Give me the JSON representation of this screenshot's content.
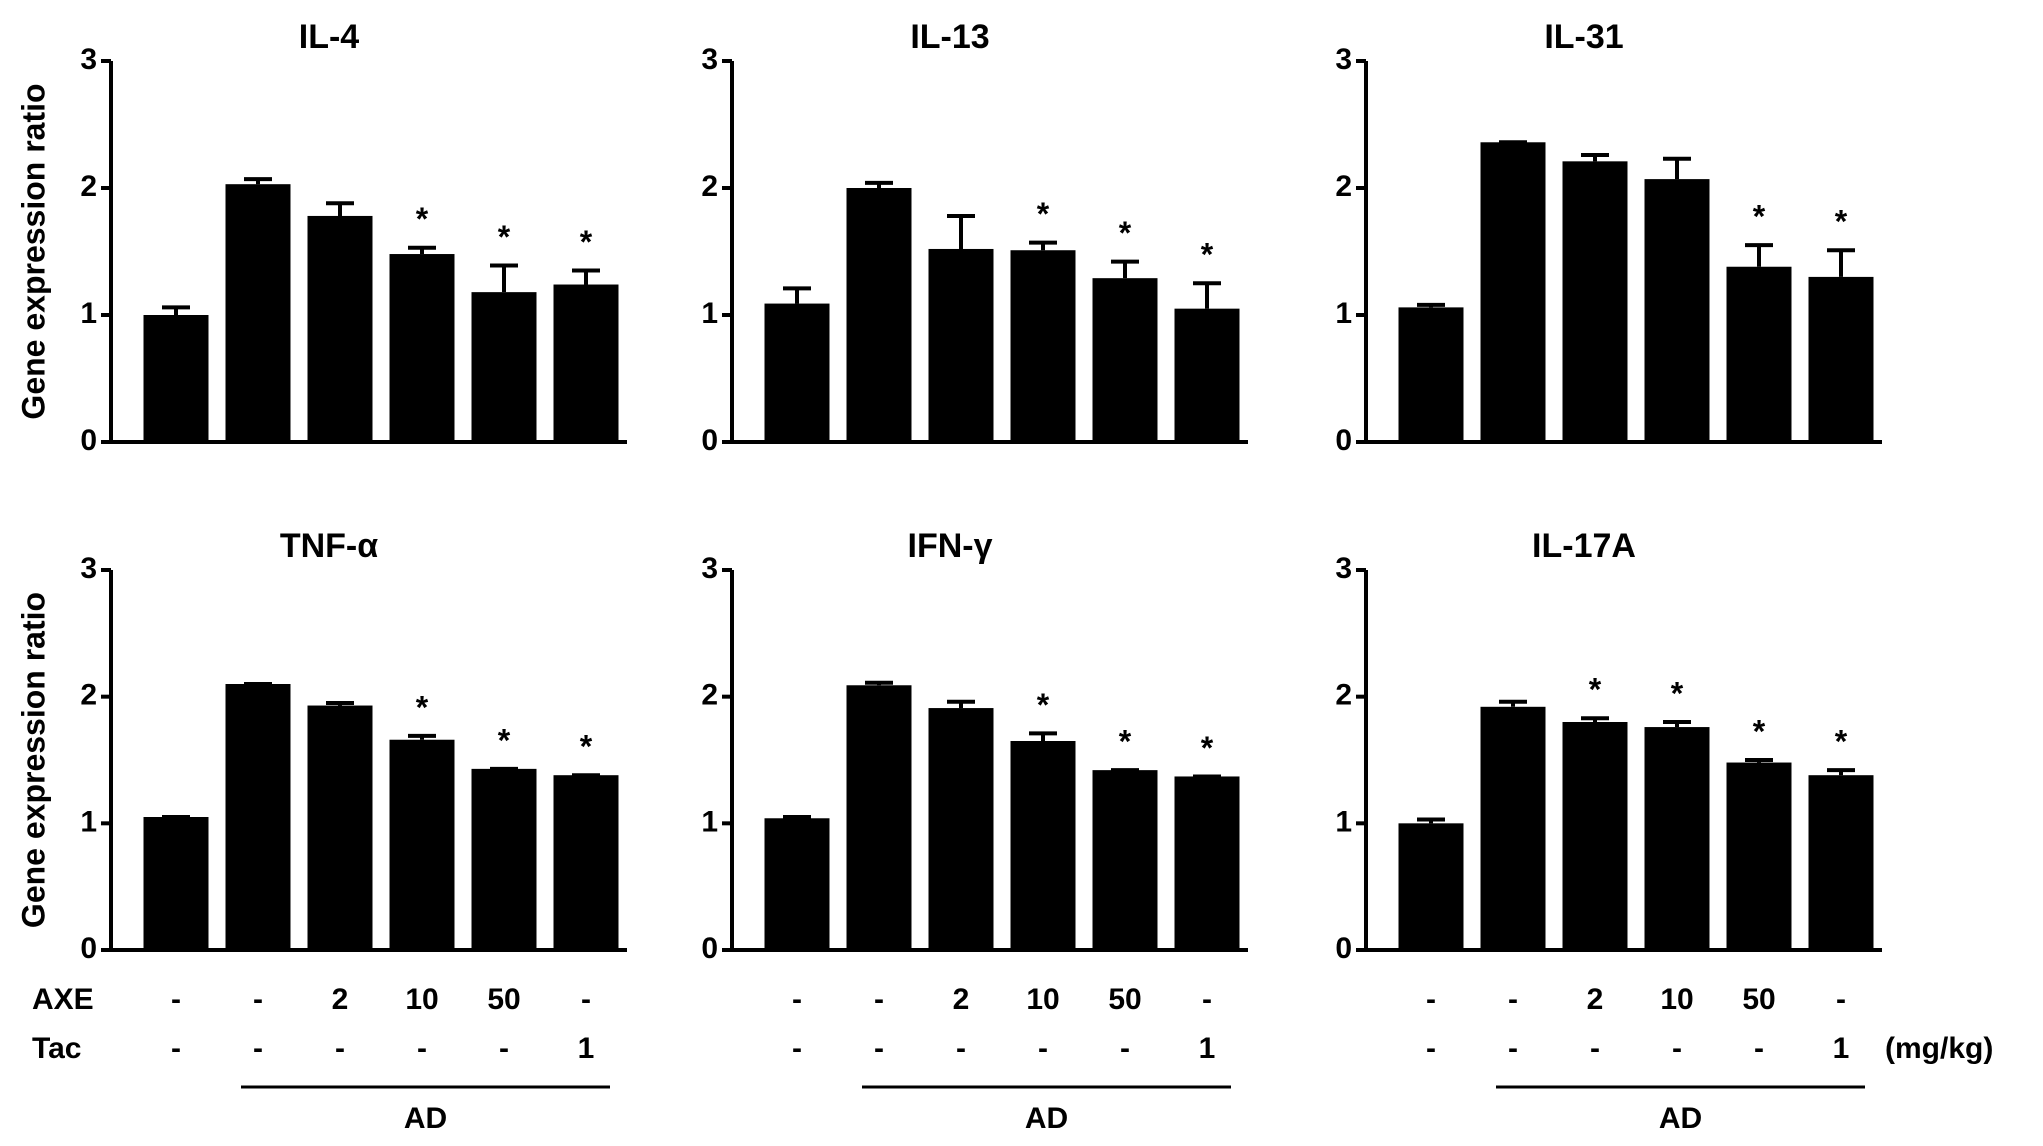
{
  "chart_data": [
    {
      "type": "bar",
      "title": "IL-4",
      "ylabel": "Gene expression ratio",
      "values": [
        1.0,
        2.03,
        1.78,
        1.48,
        1.18,
        1.24
      ],
      "errors": [
        0.06,
        0.04,
        0.1,
        0.05,
        0.21,
        0.11
      ],
      "annotations": [
        null,
        null,
        null,
        "*",
        "*",
        "*"
      ],
      "color": "#000000",
      "ylim": [
        0,
        3
      ],
      "yticks": [
        0,
        1,
        2,
        3
      ]
    },
    {
      "type": "bar",
      "title": "IL-13",
      "values": [
        1.09,
        2.0,
        1.52,
        1.51,
        1.29,
        1.05
      ],
      "errors": [
        0.12,
        0.04,
        0.26,
        0.06,
        0.13,
        0.2
      ],
      "annotations": [
        null,
        null,
        null,
        "*",
        "*",
        "*"
      ],
      "color": "#000000",
      "ylim": [
        0,
        3
      ],
      "yticks": [
        0,
        1,
        2,
        3
      ]
    },
    {
      "type": "bar",
      "title": "IL-31",
      "values": [
        1.06,
        2.36,
        2.21,
        2.07,
        1.38,
        1.3
      ],
      "errors": [
        0.02,
        0,
        0.05,
        0.16,
        0.17,
        0.21
      ],
      "annotations": [
        null,
        null,
        null,
        null,
        "*",
        "*"
      ],
      "color": "#000000",
      "ylim": [
        0,
        3
      ],
      "yticks": [
        0,
        1,
        2,
        3
      ]
    },
    {
      "type": "bar",
      "title": "TNF-α",
      "ylabel": "Gene expression ratio",
      "values": [
        1.05,
        2.1,
        1.93,
        1.66,
        1.43,
        1.38
      ],
      "errors": [
        0,
        0,
        0.02,
        0.03,
        0,
        0
      ],
      "annotations": [
        null,
        null,
        null,
        "*",
        "*",
        "*"
      ],
      "color": "#000000",
      "ylim": [
        0,
        3
      ],
      "yticks": [
        0,
        1,
        2,
        3
      ]
    },
    {
      "type": "bar",
      "title": "IFN-γ",
      "values": [
        1.04,
        2.09,
        1.91,
        1.65,
        1.42,
        1.37
      ],
      "errors": [
        0.01,
        0.02,
        0.05,
        0.06,
        0,
        0
      ],
      "annotations": [
        null,
        null,
        null,
        "*",
        "*",
        "*"
      ],
      "color": "#000000",
      "ylim": [
        0,
        3
      ],
      "yticks": [
        0,
        1,
        2,
        3
      ]
    },
    {
      "type": "bar",
      "title": "IL-17A",
      "values": [
        1.0,
        1.92,
        1.8,
        1.76,
        1.48,
        1.38
      ],
      "errors": [
        0.03,
        0.04,
        0.03,
        0.04,
        0.02,
        0.04
      ],
      "annotations": [
        null,
        null,
        "*",
        "*",
        "*",
        "*"
      ],
      "color": "#000000",
      "ylim": [
        0,
        3
      ],
      "yticks": [
        0,
        1,
        2,
        3
      ]
    }
  ],
  "x_table": {
    "rows": [
      {
        "label": "AXE",
        "values": [
          "-",
          "-",
          "2",
          "10",
          "50",
          "-"
        ]
      },
      {
        "label": "Tac",
        "values": [
          "-",
          "-",
          "-",
          "-",
          "-",
          "1"
        ]
      }
    ],
    "unit": "(mg/kg)",
    "group": "AD"
  }
}
